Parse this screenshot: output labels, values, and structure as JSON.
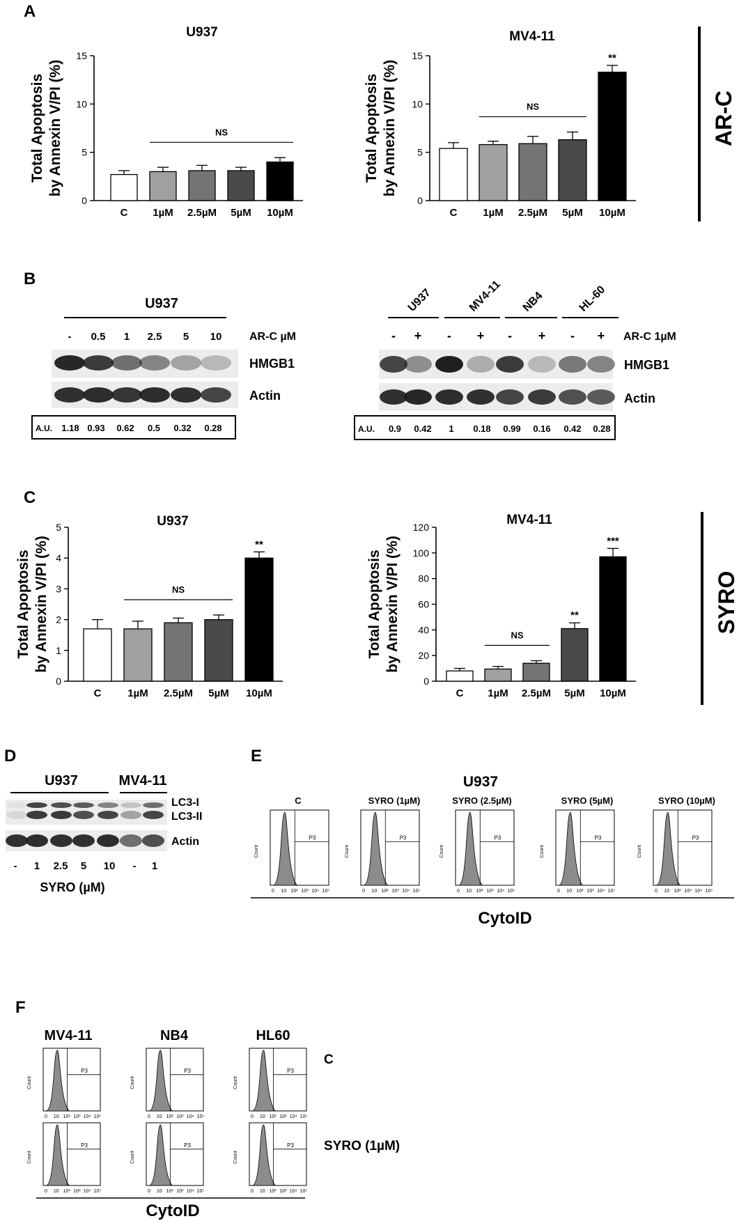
{
  "panels": {
    "A": {
      "letter": "A",
      "side_label": "AR-C",
      "ylabel_line1": "Total Apoptosis",
      "ylabel_line2": "by Annexin V/PI (%)",
      "charts": [
        {
          "title": "U937",
          "type": "bar",
          "categories": [
            "C",
            "1µM",
            "2.5µM",
            "5µM",
            "10µM"
          ],
          "values": [
            2.7,
            3.0,
            3.1,
            3.1,
            4.0
          ],
          "errors": [
            0.4,
            0.45,
            0.55,
            0.35,
            0.45
          ],
          "ylim": [
            0,
            15
          ],
          "yticks": [
            0,
            5,
            10,
            15
          ],
          "sig": [
            {
              "index": 4,
              "text": ""
            }
          ],
          "ns": {
            "from": 1,
            "to": 4,
            "label": "NS"
          }
        },
        {
          "title": "MV4-11",
          "type": "bar",
          "categories": [
            "C",
            "1µM",
            "2.5µM",
            "5µM",
            "10µM"
          ],
          "values": [
            5.4,
            5.8,
            5.9,
            6.3,
            13.3
          ],
          "errors": [
            0.6,
            0.35,
            0.75,
            0.8,
            0.7
          ],
          "ylim": [
            0,
            15
          ],
          "yticks": [
            0,
            5,
            10,
            15
          ],
          "sig": [
            {
              "index": 4,
              "text": "**"
            }
          ],
          "ns": {
            "from": 1,
            "to": 3,
            "label": "NS"
          }
        }
      ]
    },
    "B": {
      "letter": "B",
      "left": {
        "cell": "U937",
        "doses": [
          "-",
          "0.5",
          "1",
          "2.5",
          "5",
          "10"
        ],
        "treatment": "AR-C µM",
        "band1": "HMGB1",
        "band2": "Actin",
        "au_label": "A.U.",
        "au_values": [
          "1.18",
          "0.93",
          "0.62",
          "0.5",
          "0.32",
          "0.28"
        ]
      },
      "right": {
        "cells": [
          "U937",
          "MV4-11",
          "NB4",
          "HL-60"
        ],
        "signs": [
          "-",
          "+",
          "-",
          "+",
          "-",
          "+",
          "-",
          "+"
        ],
        "treatment": "AR-C 1µM",
        "band1": "HMGB1",
        "band2": "Actin",
        "au_label": "A.U.",
        "au_values": [
          "0.9",
          "0.42",
          "1",
          "0.18",
          "0.99",
          "0.16",
          "0.42",
          "0.28"
        ]
      }
    },
    "C": {
      "letter": "C",
      "side_label": "SYRO",
      "ylabel_line1": "Total Apoptosis",
      "ylabel_line2": "by Annexin V/PI (%)",
      "charts": [
        {
          "title": "U937",
          "type": "bar",
          "categories": [
            "C",
            "1µM",
            "2.5µM",
            "5µM",
            "10µM"
          ],
          "values": [
            1.7,
            1.7,
            1.9,
            2.0,
            4.0
          ],
          "errors": [
            0.3,
            0.25,
            0.15,
            0.15,
            0.2
          ],
          "ylim": [
            0,
            5
          ],
          "yticks": [
            0,
            1,
            2,
            3,
            4,
            5
          ],
          "sig": [
            {
              "index": 4,
              "text": "**"
            }
          ],
          "ns": {
            "from": 1,
            "to": 3,
            "label": "NS"
          }
        },
        {
          "title": "MV4-11",
          "type": "bar",
          "categories": [
            "C",
            "1µM",
            "2.5µM",
            "5µM",
            "10µM"
          ],
          "values": [
            8,
            9.5,
            14,
            41,
            97
          ],
          "errors": [
            2,
            2,
            2,
            4.5,
            6.5
          ],
          "ylim": [
            0,
            120
          ],
          "yticks": [
            0,
            20,
            40,
            60,
            80,
            100,
            120
          ],
          "sig": [
            {
              "index": 3,
              "text": "**"
            },
            {
              "index": 4,
              "text": "***"
            }
          ],
          "ns": {
            "from": 1,
            "to": 2,
            "label": "NS"
          }
        }
      ]
    },
    "D": {
      "letter": "D",
      "cells": [
        "U937",
        "MV4-11"
      ],
      "band1": "LC3-I",
      "band1b": "LC3-II",
      "band2": "Actin",
      "doses": [
        "-",
        "1",
        "2.5",
        "5",
        "10",
        "-",
        "1"
      ],
      "xlabel": "SYRO (µM)"
    },
    "E": {
      "letter": "E",
      "cell": "U937",
      "gate": "P3",
      "ylabel": "Count",
      "xlabel": "CytoID",
      "titles": [
        "C",
        "SYRO (1µM)",
        "SYRO (2.5µM)",
        "SYRO (5µM)",
        "SYRO (10µM)"
      ],
      "xticks": [
        "0",
        "10",
        "10²",
        "10³",
        "10⁴",
        "10⁵"
      ]
    },
    "F": {
      "letter": "F",
      "gate": "P3",
      "ylabel": "Count",
      "xlabel": "CytoID",
      "cells": [
        "MV4-11",
        "NB4",
        "HL60"
      ],
      "rows": [
        "C",
        "SYRO (1µM)"
      ],
      "xticks": [
        "0",
        "10",
        "10²",
        "10³",
        "10⁴",
        "10⁵"
      ]
    }
  },
  "colors": {
    "bar_fills": [
      "#ffffff",
      "#a0a0a0",
      "#747474",
      "#4a4a4a",
      "#000000"
    ],
    "histogram": "#8c8c8c",
    "band": "#1c1c1c"
  }
}
